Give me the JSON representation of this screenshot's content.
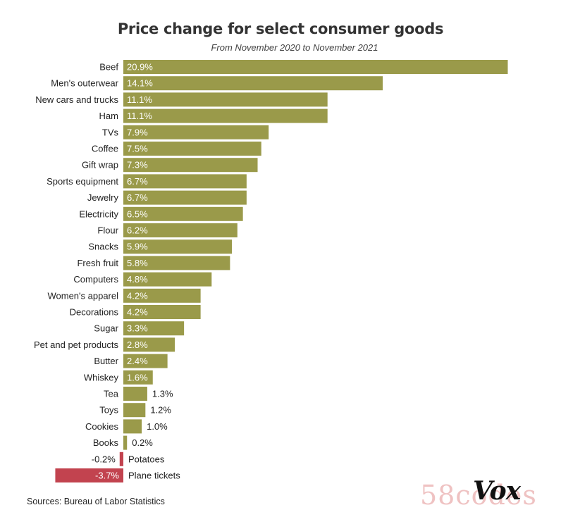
{
  "chart_data": {
    "type": "bar",
    "orientation": "horizontal",
    "title": "Price change for select consumer goods",
    "subtitle": "From November 2020 to November 2021",
    "categories": [
      "Beef",
      "Men's outerwear",
      "New cars and trucks",
      "Ham",
      "TVs",
      "Coffee",
      "Gift wrap",
      "Sports equipment",
      "Jewelry",
      "Electricity",
      "Flour",
      "Snacks",
      "Fresh fruit",
      "Computers",
      "Women's apparel",
      "Decorations",
      "Sugar",
      "Pet and pet products",
      "Butter",
      "Whiskey",
      "Tea",
      "Toys",
      "Cookies",
      "Books",
      "Potatoes",
      "Plane tickets"
    ],
    "values": [
      20.9,
      14.1,
      11.1,
      11.1,
      7.9,
      7.5,
      7.3,
      6.7,
      6.7,
      6.5,
      6.2,
      5.9,
      5.8,
      4.8,
      4.2,
      4.2,
      3.3,
      2.8,
      2.4,
      1.6,
      1.3,
      1.2,
      1.0,
      0.2,
      -0.2,
      -3.7
    ],
    "value_labels": [
      "20.9%",
      "14.1%",
      "11.1%",
      "11.1%",
      "7.9%",
      "7.5%",
      "7.3%",
      "6.7%",
      "6.7%",
      "6.5%",
      "6.2%",
      "5.9%",
      "5.8%",
      "4.8%",
      "4.2%",
      "4.2%",
      "3.3%",
      "2.8%",
      "2.4%",
      "1.6%",
      "1.3%",
      "1.2%",
      "1.0%",
      "0.2%",
      "-0.2%",
      "-3.7%"
    ],
    "xlim": [
      -3.7,
      20.9
    ],
    "grid": false,
    "colors": {
      "positive": "#9a9a4a",
      "negative": "#c2434f"
    }
  },
  "source": "Sources: Bureau of Labor Statistics",
  "brand": "Vox",
  "watermark": "58codes"
}
